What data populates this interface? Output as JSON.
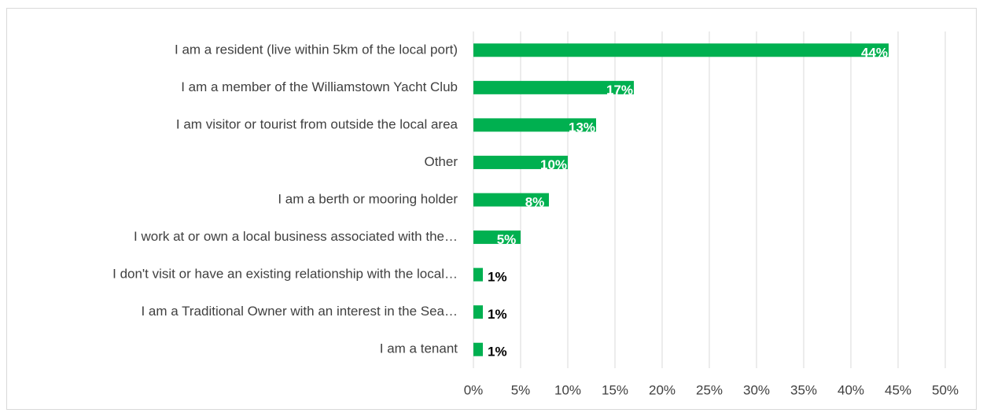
{
  "chart_data": {
    "type": "bar",
    "orientation": "horizontal",
    "categories": [
      "I am a resident (live within 5km of the local port)",
      "I am a member of the Williamstown Yacht Club",
      "I am visitor or tourist from outside the local area",
      "Other",
      "I am a berth or mooring holder",
      "I work at or own a local business associated with the…",
      "I don't visit or have an existing relationship with the local…",
      "I am a Traditional Owner with an interest in the Sea…",
      "I am a tenant"
    ],
    "values": [
      44,
      17,
      13,
      10,
      8,
      5,
      1,
      1,
      1
    ],
    "value_labels": [
      "44%",
      "17%",
      "13%",
      "10%",
      "8%",
      "5%",
      "1%",
      "1%",
      "1%"
    ],
    "color": "#00b050",
    "xlim": [
      0,
      50
    ],
    "xticks": [
      {
        "value": 0,
        "label": "0%"
      },
      {
        "value": 5,
        "label": "5%"
      },
      {
        "value": 10,
        "label": "10%"
      },
      {
        "value": 15,
        "label": "15%"
      },
      {
        "value": 20,
        "label": "20%"
      },
      {
        "value": 25,
        "label": "25%"
      },
      {
        "value": 30,
        "label": "30%"
      },
      {
        "value": 35,
        "label": "35%"
      },
      {
        "value": 40,
        "label": "40%"
      },
      {
        "value": 45,
        "label": "45%"
      },
      {
        "value": 50,
        "label": "50%"
      }
    ],
    "grid": true
  }
}
